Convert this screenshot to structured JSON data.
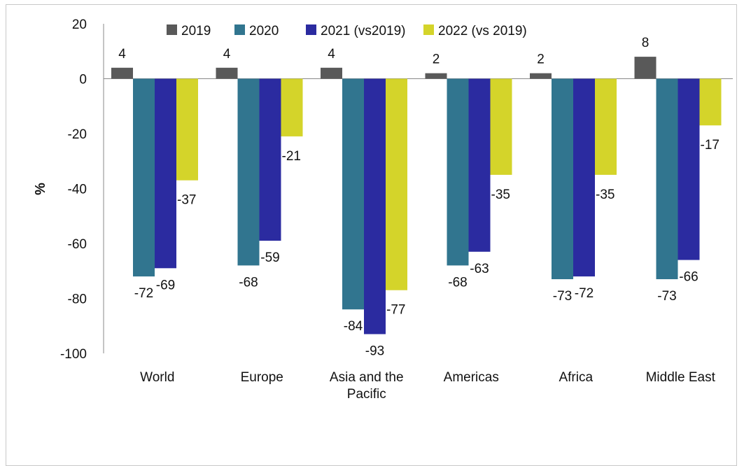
{
  "chart_data": {
    "type": "bar",
    "ylabel": "%",
    "ylim": [
      -100,
      20
    ],
    "yticks": [
      20,
      0,
      -20,
      -40,
      -60,
      -80,
      -100
    ],
    "categories": [
      [
        "World"
      ],
      [
        "Europe"
      ],
      [
        "Asia and the",
        "Pacific"
      ],
      [
        "Americas"
      ],
      [
        "Africa"
      ],
      [
        "Middle East"
      ]
    ],
    "series": [
      {
        "name": "2019",
        "color": "#595959",
        "values": [
          4,
          4,
          4,
          2,
          2,
          8
        ]
      },
      {
        "name": "2020",
        "color": "#31758F",
        "values": [
          -72,
          -68,
          -84,
          -68,
          -73,
          -73
        ]
      },
      {
        "name": "2021 (vs2019)",
        "color": "#2B2BA0",
        "values": [
          -69,
          -59,
          -93,
          -63,
          -72,
          -66
        ]
      },
      {
        "name": "2022 (vs 2019)",
        "color": "#D4D42A",
        "values": [
          -37,
          -21,
          -77,
          -35,
          -35,
          -17
        ]
      }
    ],
    "legend_position": "top",
    "grid": false
  }
}
